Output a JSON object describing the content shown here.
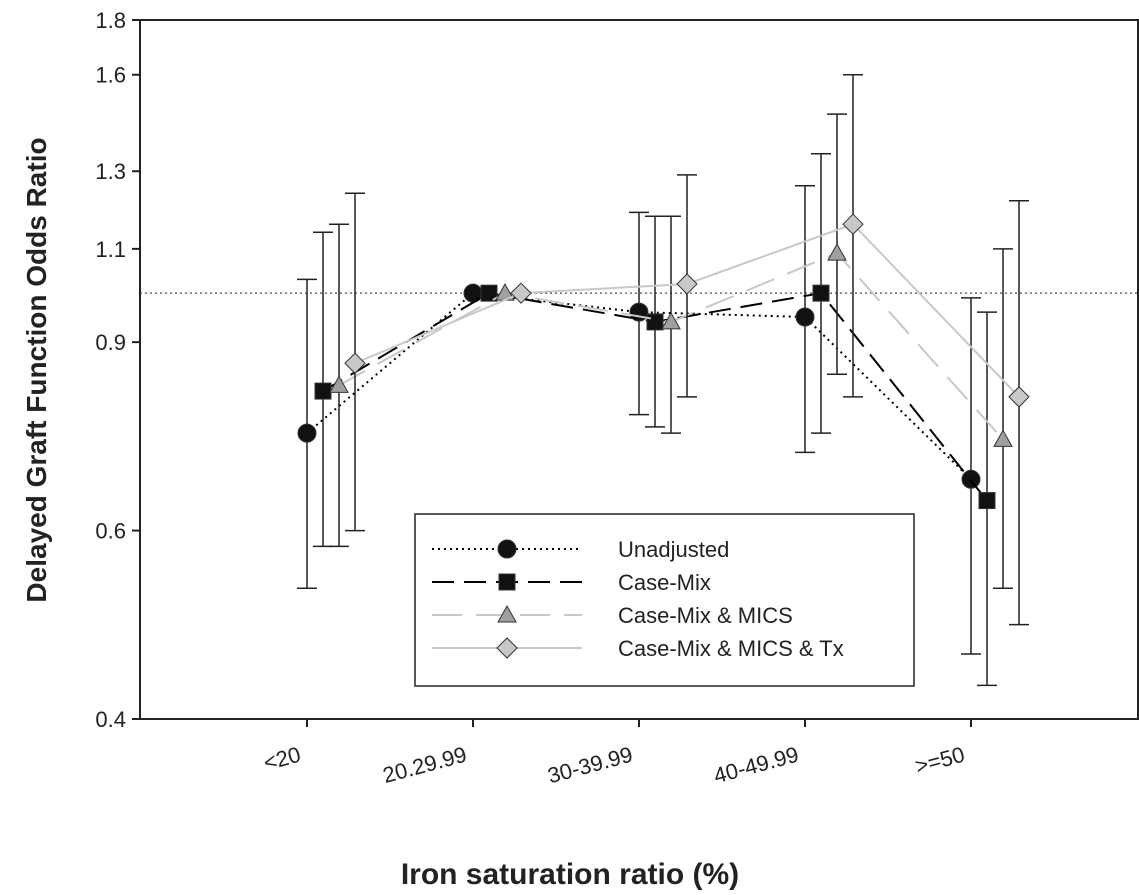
{
  "chart_data": {
    "type": "line",
    "x_label": "Iron saturation ratio (%)",
    "y_label": "Delayed Graft Function Odds Ratio",
    "categories": [
      "<20",
      "20.29.99",
      "30-39.99",
      "40-49.99",
      ">=50"
    ],
    "ylim": [
      0.4,
      1.8
    ],
    "yticks": [
      0.4,
      0.6,
      0.9,
      1.1,
      1.3,
      1.6,
      1.8
    ],
    "log_y": true,
    "reference_line": 1,
    "legend": "lower-right",
    "series": [
      {
        "name": "Unadjusted",
        "color": "#000000",
        "dash": "dotted",
        "marker": "circle",
        "marker_color": "#111111",
        "values": [
          0.74,
          1.0,
          0.96,
          0.95,
          0.67
        ],
        "lower": [
          0.53,
          null,
          0.77,
          0.71,
          0.46
        ],
        "upper": [
          1.03,
          null,
          1.19,
          1.26,
          0.99
        ]
      },
      {
        "name": "Case-Mix",
        "color": "#000000",
        "dash": "dashed",
        "marker": "square",
        "marker_color": "#111111",
        "values": [
          0.81,
          1.0,
          0.94,
          1.0,
          0.64
        ],
        "lower": [
          0.58,
          null,
          0.75,
          0.74,
          0.43
        ],
        "upper": [
          1.14,
          null,
          1.18,
          1.35,
          0.96
        ]
      },
      {
        "name": "Case-Mix & MICS",
        "color": "#c8c8c8",
        "dash": "longdash",
        "marker": "triangle",
        "marker_color": "#a0a0a0",
        "values": [
          0.82,
          1.0,
          0.94,
          1.09,
          0.73
        ],
        "lower": [
          0.58,
          null,
          0.74,
          0.84,
          0.53
        ],
        "upper": [
          1.16,
          null,
          1.18,
          1.47,
          1.1
        ]
      },
      {
        "name": "Case-Mix & MICS & Tx",
        "color": "#c8c8c8",
        "dash": "solid",
        "marker": "diamond",
        "marker_color": "#c8c8c8",
        "values": [
          0.86,
          1.0,
          1.02,
          1.16,
          0.8
        ],
        "lower": [
          0.6,
          null,
          0.8,
          0.8,
          0.49
        ],
        "upper": [
          1.24,
          null,
          1.29,
          1.6,
          1.22
        ]
      }
    ]
  }
}
